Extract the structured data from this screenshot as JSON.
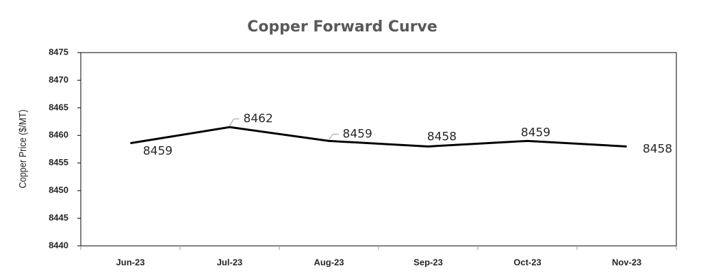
{
  "chart_data": {
    "type": "line",
    "title": "Copper Forward Curve",
    "y_label": "Copper Price ($/MT)",
    "categories": [
      "Jun-23",
      "Jul-23",
      "Aug-23",
      "Sep-23",
      "Oct-23",
      "Nov-23"
    ],
    "values": [
      8458.6,
      8461.5,
      8459,
      8458,
      8459,
      8458
    ],
    "value_labels": [
      "8459",
      "8462",
      "8459",
      "8458",
      "8459",
      "8458"
    ],
    "color": "#000000",
    "ylim": [
      8440,
      8475
    ],
    "yticks": [
      8440,
      8445,
      8450,
      8455,
      8460,
      8465,
      8470,
      8475
    ]
  }
}
